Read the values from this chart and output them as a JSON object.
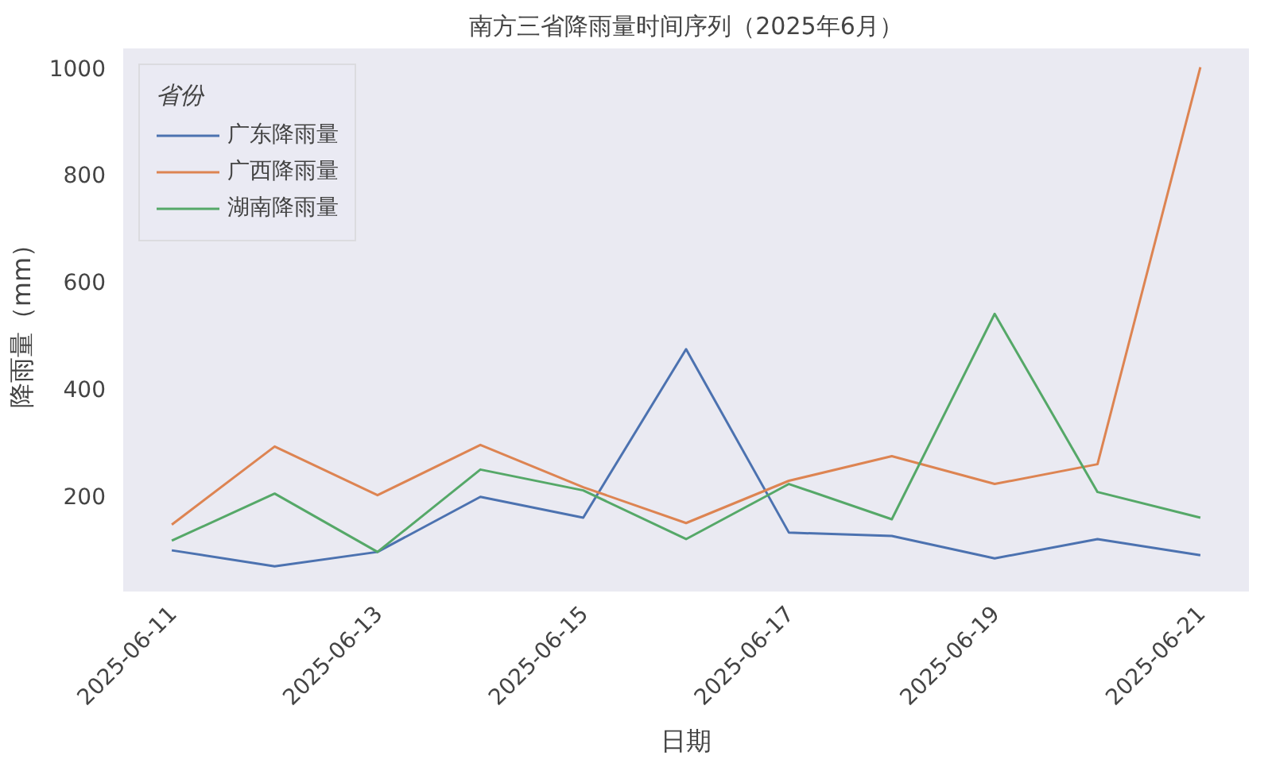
{
  "chart_data": {
    "type": "line",
    "title": "南方三省降雨量时间序列（2025年6月）",
    "xlabel": "日期",
    "ylabel": "降雨量（mm）",
    "legend_title": "省份",
    "legend": "top left",
    "grid": false,
    "line_style": "solid",
    "marker": "none",
    "x": [
      "2025-06-11",
      "2025-06-12",
      "2025-06-13",
      "2025-06-14",
      "2025-06-15",
      "2025-06-16",
      "2025-06-17",
      "2025-06-18",
      "2025-06-19",
      "2025-06-20",
      "2025-06-21"
    ],
    "xlim": [
      "2025-06-10T12:40",
      "2025-06-21T11:20"
    ],
    "xticks": [
      {
        "value": "2025-06-11",
        "label": "2025-06-11"
      },
      {
        "value": "2025-06-13",
        "label": "2025-06-13"
      },
      {
        "value": "2025-06-15",
        "label": "2025-06-15"
      },
      {
        "value": "2025-06-17",
        "label": "2025-06-17"
      },
      {
        "value": "2025-06-19",
        "label": "2025-06-19"
      },
      {
        "value": "2025-06-21",
        "label": "2025-06-21"
      }
    ],
    "ylim": [
      20,
      1035
    ],
    "yticks": [
      200,
      400,
      600,
      800,
      1000
    ],
    "series": [
      {
        "name": "广东降雨量",
        "color": "#4c72b0",
        "values": [
          97,
          67,
          94,
          197,
          158,
          473,
          130,
          124,
          82,
          118,
          88
        ]
      },
      {
        "name": "广西降雨量",
        "color": "#dd8452",
        "values": [
          145,
          291,
          200,
          294,
          215,
          148,
          227,
          273,
          221,
          258,
          1000
        ]
      },
      {
        "name": "湖南降雨量",
        "color": "#55a868",
        "values": [
          115,
          203,
          94,
          248,
          209,
          118,
          221,
          155,
          539,
          206,
          158
        ]
      }
    ]
  }
}
